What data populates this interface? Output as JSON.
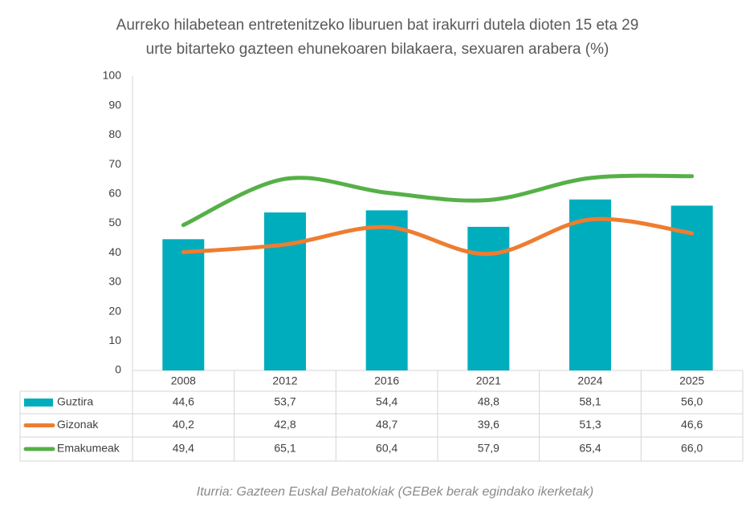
{
  "chart_data": {
    "type": "combo",
    "title": [
      "Aurreko hilabetean entretenitzeko liburuen bat irakurri dutela dioten 15 eta 29",
      "urte bitarteko gazteen ehunekoaren bilakaera, sexuaren arabera (%)"
    ],
    "categories": [
      "2008",
      "2012",
      "2016",
      "2021",
      "2024",
      "2025"
    ],
    "series": [
      {
        "name": "Guztira",
        "type": "bar",
        "color": "#00adbd",
        "values": [
          44.6,
          53.7,
          54.4,
          48.8,
          58.1,
          56.0
        ],
        "value_labels": [
          "44,6",
          "53,7",
          "54,4",
          "48,8",
          "58,1",
          "56,0"
        ]
      },
      {
        "name": "Gizonak",
        "type": "line",
        "color": "#ee7d31",
        "values": [
          40.2,
          42.8,
          48.7,
          39.6,
          51.3,
          46.6
        ],
        "value_labels": [
          "40,2",
          "42,8",
          "48,7",
          "39,6",
          "51,3",
          "46,6"
        ]
      },
      {
        "name": "Emakumeak",
        "type": "line",
        "color": "#56b047",
        "values": [
          49.4,
          65.1,
          60.4,
          57.9,
          65.4,
          66.0
        ],
        "value_labels": [
          "49,4",
          "65,1",
          "60,4",
          "57,9",
          "65,4",
          "66,0"
        ]
      }
    ],
    "ylim": [
      0,
      100
    ],
    "yticks": [
      0,
      10,
      20,
      30,
      40,
      50,
      60,
      70,
      80,
      90,
      100
    ],
    "smooth": true,
    "source": "Iturria: Gazteen Euskal Behatokiak (GEBek berak egindako ikerketak)"
  }
}
